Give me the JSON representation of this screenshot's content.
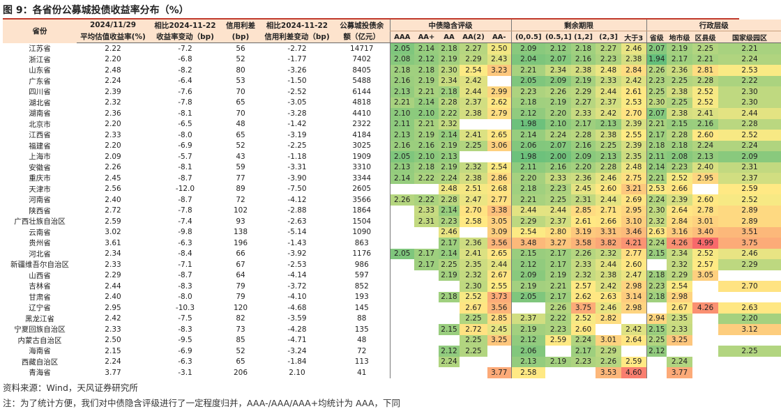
{
  "title": "图 9：各省份公募城投债收益率分布（%）",
  "source": "资料来源：Wind，天风证券研究所",
  "note": "注：为了统计方便，我们对中债隐含评级进行了一定程度归并，AAA-/AAA/AAA+均统计为 AAA，下同",
  "header": {
    "province": "省份",
    "yield_date": "2024/11/29",
    "yield_label": "平均估值收益率(%)",
    "chg_date": "相比2024-11-22",
    "chg_label": "收益率变动（bp)",
    "spread_top": "信用利差",
    "spread_unit": "(bp)",
    "spread_chg_date": "相比2024-11-22",
    "spread_chg_label": "信用利差变动（bp)",
    "balance_top": "公募城投债余",
    "balance_label": "额（亿元）",
    "group_rating": "中债隐含评级",
    "group_term": "剩余期限",
    "group_admin": "行政层级",
    "ratings": [
      "AAA",
      "AA+",
      "AA",
      "AA(2)",
      "AA-"
    ],
    "terms": [
      "(0,0.5]",
      "(0.5,1]",
      "(1,2]",
      "(2,3]",
      "大于3"
    ],
    "admin": [
      "省级",
      "地市级",
      "区县级",
      "国家级园区"
    ]
  },
  "chart_data": {
    "type": "table",
    "title": "图 9：各省份公募城投债收益率分布（%）",
    "colormap": {
      "low": "#63be7b",
      "mid": "#ffeb84",
      "high": "#f8696b",
      "low_value": 1.94,
      "mid_value": 2.55,
      "high_value": 4.99
    },
    "rows": [
      {
        "province": "江苏省",
        "yield": "2.22",
        "chg": "-7.2",
        "spread": "56",
        "spread_chg": "-2.72",
        "balance": "14717",
        "rating": [
          "2.05",
          "2.14",
          "2.18",
          "2.27",
          "2.50"
        ],
        "term": [
          "2.09",
          "2.12",
          "2.18",
          "2.27",
          "2.46"
        ],
        "admin": [
          "2.07",
          "2.19",
          "2.25",
          "2.21"
        ]
      },
      {
        "province": "浙江省",
        "yield": "2.20",
        "chg": "-6.8",
        "spread": "52",
        "spread_chg": "-1.77",
        "balance": "7402",
        "rating": [
          "2.08",
          "2.12",
          "2.19",
          "2.29",
          "2.43"
        ],
        "term": [
          "2.04",
          "2.07",
          "2.16",
          "2.23",
          "2.38"
        ],
        "admin": [
          "1.94",
          "2.17",
          "2.21",
          "2.24"
        ]
      },
      {
        "province": "山东省",
        "yield": "2.48",
        "chg": "-8.2",
        "spread": "80",
        "spread_chg": "-3.26",
        "balance": "8405",
        "rating": [
          "2.18",
          "2.18",
          "2.30",
          "2.54",
          "3.23"
        ],
        "term": [
          "2.21",
          "2.34",
          "2.38",
          "2.48",
          "2.84"
        ],
        "admin": [
          "2.26",
          "2.36",
          "2.81",
          "2.53"
        ]
      },
      {
        "province": "广东省",
        "yield": "2.24",
        "chg": "-6.4",
        "spread": "53",
        "spread_chg": "-1.50",
        "balance": "5488",
        "rating": [
          "2.16",
          "2.19",
          "2.34",
          "2.42",
          ""
        ],
        "term": [
          "2.05",
          "2.09",
          "2.19",
          "2.33",
          "2.42"
        ],
        "admin": [
          "2.23",
          "2.25",
          "2.28",
          "2.22"
        ]
      },
      {
        "province": "四川省",
        "yield": "2.39",
        "chg": "-7.6",
        "spread": "70",
        "spread_chg": "-2.52",
        "balance": "6144",
        "rating": [
          "2.13",
          "2.21",
          "2.18",
          "2.44",
          "2.99"
        ],
        "term": [
          "2.23",
          "2.26",
          "2.29",
          "2.44",
          "2.61"
        ],
        "admin": [
          "2.25",
          "2.38",
          "2.52",
          "2.30"
        ]
      },
      {
        "province": "湖北省",
        "yield": "2.32",
        "chg": "-7.8",
        "spread": "65",
        "spread_chg": "-3.05",
        "balance": "4818",
        "rating": [
          "2.21",
          "2.14",
          "2.28",
          "2.37",
          "2.62"
        ],
        "term": [
          "2.18",
          "2.19",
          "2.27",
          "2.37",
          "2.53"
        ],
        "admin": [
          "2.30",
          "2.25",
          "2.52",
          "2.30"
        ]
      },
      {
        "province": "湖南省",
        "yield": "2.36",
        "chg": "-8.1",
        "spread": "70",
        "spread_chg": "-3.28",
        "balance": "4410",
        "rating": [
          "2.10",
          "2.10",
          "2.22",
          "2.38",
          "2.79"
        ],
        "term": [
          "2.12",
          "2.20",
          "2.33",
          "2.42",
          "2.70"
        ],
        "admin": [
          "2.07",
          "2.38",
          "2.41",
          "2.44"
        ]
      },
      {
        "province": "北京市",
        "yield": "2.20",
        "chg": "-6.5",
        "spread": "48",
        "spread_chg": "-1.42",
        "balance": "2322",
        "rating": [
          "2.11",
          "2.21",
          "2.32",
          "",
          ""
        ],
        "term": [
          "1.98",
          "2.10",
          "2.17",
          "2.13",
          "2.39"
        ],
        "admin": [
          "2.21",
          "2.15",
          "2.16",
          "2.28"
        ]
      },
      {
        "province": "江西省",
        "yield": "2.33",
        "chg": "-8.0",
        "spread": "65",
        "spread_chg": "-3.19",
        "balance": "4184",
        "rating": [
          "2.13",
          "2.19",
          "2.14",
          "2.41",
          "2.65"
        ],
        "term": [
          "2.14",
          "2.24",
          "2.28",
          "2.38",
          "2.55"
        ],
        "admin": [
          "2.17",
          "2.28",
          "2.60",
          "2.52"
        ]
      },
      {
        "province": "福建省",
        "yield": "2.20",
        "chg": "-6.9",
        "spread": "52",
        "spread_chg": "-2.25",
        "balance": "3025",
        "rating": [
          "2.16",
          "2.16",
          "2.19",
          "2.25",
          "3.06"
        ],
        "term": [
          "2.06",
          "2.07",
          "2.16",
          "2.25",
          "2.39"
        ],
        "admin": [
          "2.18",
          "2.18",
          "2.24",
          "2.24"
        ]
      },
      {
        "province": "上海市",
        "yield": "2.09",
        "chg": "-5.7",
        "spread": "43",
        "spread_chg": "-1.18",
        "balance": "1909",
        "rating": [
          "2.05",
          "2.10",
          "2.13",
          "",
          ""
        ],
        "term": [
          "1.98",
          "2.00",
          "2.09",
          "2.13",
          "2.35"
        ],
        "admin": [
          "2.11",
          "2.08",
          "2.13",
          "2.09"
        ]
      },
      {
        "province": "安徽省",
        "yield": "2.26",
        "chg": "-8.1",
        "spread": "59",
        "spread_chg": "-3.31",
        "balance": "3310",
        "rating": [
          "2.13",
          "2.18",
          "2.19",
          "2.32",
          "2.54"
        ],
        "term": [
          "2.11",
          "2.16",
          "2.20",
          "2.28",
          "2.48"
        ],
        "admin": [
          "2.14",
          "2.23",
          "2.40",
          "2.31"
        ]
      },
      {
        "province": "重庆市",
        "yield": "2.45",
        "chg": "-8.7",
        "spread": "77",
        "spread_chg": "-3.90",
        "balance": "3344",
        "rating": [
          "2.14",
          "2.22",
          "2.24",
          "2.38",
          "2.86"
        ],
        "term": [
          "2.20",
          "2.33",
          "2.36",
          "2.46",
          "2.75"
        ],
        "admin": [
          "2.21",
          "2.52",
          "2.95",
          "2.37"
        ]
      },
      {
        "province": "天津市",
        "yield": "2.56",
        "chg": "-12.0",
        "spread": "89",
        "spread_chg": "-7.50",
        "balance": "2605",
        "rating": [
          "",
          "",
          "2.48",
          "2.51",
          "2.68"
        ],
        "term": [
          "2.18",
          "2.23",
          "2.45",
          "2.60",
          "3.21"
        ],
        "admin": [
          "2.53",
          "2.66",
          "",
          "2.59"
        ]
      },
      {
        "province": "河南省",
        "yield": "2.40",
        "chg": "-8.7",
        "spread": "72",
        "spread_chg": "-4.12",
        "balance": "3566",
        "rating": [
          "2.26",
          "2.22",
          "2.28",
          "2.47",
          "2.77"
        ],
        "term": [
          "2.21",
          "2.25",
          "2.31",
          "2.44",
          "2.69"
        ],
        "admin": [
          "2.24",
          "2.39",
          "2.60",
          "2.52"
        ]
      },
      {
        "province": "陕西省",
        "yield": "2.72",
        "chg": "-7.8",
        "spread": "102",
        "spread_chg": "-2.88",
        "balance": "1864",
        "rating": [
          "",
          "2.33",
          "2.14",
          "2.70",
          "3.38"
        ],
        "term": [
          "2.44",
          "2.44",
          "2.85",
          "2.71",
          "2.95"
        ],
        "admin": [
          "2.30",
          "2.64",
          "2.78",
          "2.89"
        ]
      },
      {
        "province": "广西壮族自治区",
        "yield": "2.59",
        "chg": "-7.4",
        "spread": "93",
        "spread_chg": "-2.63",
        "balance": "1504",
        "rating": [
          "",
          "2.31",
          "2.23",
          "2.58",
          "3.05"
        ],
        "term": [
          "2.29",
          "2.37",
          "2.61",
          "2.66",
          "3.10"
        ],
        "admin": [
          "2.32",
          "2.84",
          "3.01",
          "2.89"
        ]
      },
      {
        "province": "云南省",
        "yield": "3.02",
        "chg": "-9.8",
        "spread": "138",
        "spread_chg": "-5.14",
        "balance": "1090",
        "rating": [
          "",
          "",
          "2.46",
          "",
          "3.09"
        ],
        "term": [
          "2.54",
          "2.80",
          "3.19",
          "3.31",
          "3.46"
        ],
        "admin": [
          "2.63",
          "3.16",
          "3.40",
          "3.51"
        ]
      },
      {
        "province": "贵州省",
        "yield": "3.61",
        "chg": "-6.3",
        "spread": "196",
        "spread_chg": "-1.43",
        "balance": "863",
        "rating": [
          "",
          "",
          "2.17",
          "2.36",
          "3.56"
        ],
        "term": [
          "3.48",
          "3.27",
          "3.58",
          "3.82",
          "4.21"
        ],
        "admin": [
          "2.24",
          "4.26",
          "4.99",
          "3.75"
        ]
      },
      {
        "province": "河北省",
        "yield": "2.34",
        "chg": "-8.4",
        "spread": "66",
        "spread_chg": "-3.92",
        "balance": "1176",
        "rating": [
          "2.05",
          "2.17",
          "2.14",
          "2.41",
          "2.65"
        ],
        "term": [
          "2.15",
          "2.17",
          "2.26",
          "2.32",
          "2.77"
        ],
        "admin": [
          "2.15",
          "2.34",
          "2.52",
          "2.46"
        ]
      },
      {
        "province": "新疆维吾尔自治区",
        "yield": "2.33",
        "chg": "-7.1",
        "spread": "67",
        "spread_chg": "-2.53",
        "balance": "986",
        "rating": [
          "",
          "2.17",
          "2.25",
          "2.35",
          "2.44"
        ],
        "term": [
          "2.12",
          "2.17",
          "2.33",
          "2.44",
          "2.60"
        ],
        "admin": [
          "",
          "2.32",
          "2.57",
          "2.29"
        ]
      },
      {
        "province": "山西省",
        "yield": "2.29",
        "chg": "-8.7",
        "spread": "64",
        "spread_chg": "-4.14",
        "balance": "597",
        "rating": [
          "",
          "",
          "2.19",
          "2.32",
          "2.67"
        ],
        "term": [
          "2.09",
          "2.19",
          "2.32",
          "2.38",
          "2.47"
        ],
        "admin": [
          "2.18",
          "2.29",
          "3.05",
          ""
        ]
      },
      {
        "province": "吉林省",
        "yield": "2.44",
        "chg": "-8.3",
        "spread": "79",
        "spread_chg": "-3.72",
        "balance": "852",
        "rating": [
          "",
          "",
          "",
          "2.30",
          "2.55"
        ],
        "term": [
          "2.19",
          "2.21",
          "2.57",
          "2.42",
          "2.98"
        ],
        "admin": [
          "2.23",
          "2.54",
          "",
          "2.70"
        ]
      },
      {
        "province": "甘肃省",
        "yield": "2.40",
        "chg": "-8.0",
        "spread": "79",
        "spread_chg": "-4.10",
        "balance": "193",
        "rating": [
          "",
          "",
          "2.18",
          "2.52",
          "3.73"
        ],
        "term": [
          "2.05",
          "2.17",
          "2.62",
          "2.63",
          "3.14"
        ],
        "admin": [
          "2.18",
          "2.98",
          "",
          ""
        ]
      },
      {
        "province": "辽宁省",
        "yield": "2.95",
        "chg": "-10.3",
        "spread": "120",
        "spread_chg": "-4.68",
        "balance": "145",
        "rating": [
          "",
          "",
          "",
          "2.67",
          "3.56"
        ],
        "term": [
          "",
          "2.26",
          "3.75",
          "2.46",
          "2.98"
        ],
        "admin": [
          "",
          "2.67",
          "4.26",
          "2.63"
        ]
      },
      {
        "province": "黑龙江省",
        "yield": "2.42",
        "chg": "-7.5",
        "spread": "82",
        "spread_chg": "-3.59",
        "balance": "88",
        "rating": [
          "",
          "",
          "",
          "2.25",
          "2.85"
        ],
        "term": [
          "2.37",
          "2.22",
          "2.52",
          "2.82",
          ""
        ],
        "admin": [
          "2.94",
          "2.35",
          "",
          "2.20"
        ]
      },
      {
        "province": "宁夏回族自治区",
        "yield": "2.33",
        "chg": "-8.3",
        "spread": "73",
        "spread_chg": "-4.28",
        "balance": "135",
        "rating": [
          "",
          "",
          "2.15",
          "2.72",
          "2.45"
        ],
        "term": [
          "2.19",
          "2.23",
          "2.60",
          "",
          "2.42"
        ],
        "admin": [
          "2.15",
          "2.33",
          "",
          "3.12"
        ]
      },
      {
        "province": "内蒙古自治区",
        "yield": "2.50",
        "chg": "-9.5",
        "spread": "85",
        "spread_chg": "-4.71",
        "balance": "48",
        "rating": [
          "",
          "",
          "",
          "2.25",
          "3.25"
        ],
        "term": [
          "2.12",
          "2.59",
          "2.24",
          "3.01",
          "2.64"
        ],
        "admin": [
          "2.25",
          "3.25",
          "",
          ""
        ]
      },
      {
        "province": "海南省",
        "yield": "2.15",
        "chg": "-6.9",
        "spread": "52",
        "spread_chg": "-3.24",
        "balance": "72",
        "rating": [
          "",
          "",
          "2.12",
          "2.25",
          ""
        ],
        "term": [
          "2.06",
          "",
          "2.17",
          "2.29",
          ""
        ],
        "admin": [
          "2.12",
          "",
          "",
          "2.25"
        ]
      },
      {
        "province": "西藏自治区",
        "yield": "2.24",
        "chg": "-6.3",
        "spread": "65",
        "spread_chg": "-1.84",
        "balance": "113",
        "rating": [
          "",
          "",
          "2.24",
          "",
          ""
        ],
        "term": [
          "2.13",
          "2.19",
          "2.23",
          "2.26",
          "2.59"
        ],
        "admin": [
          "",
          "2.24",
          "",
          ""
        ]
      },
      {
        "province": "青海省",
        "yield": "3.77",
        "chg": "-3.1",
        "spread": "206",
        "spread_chg": "2.10",
        "balance": "41",
        "rating": [
          "",
          "",
          "",
          "",
          "3.77"
        ],
        "term": [
          "2.58",
          "",
          "",
          "3.53",
          "4.60"
        ],
        "admin": [
          "",
          "3.77",
          "",
          ""
        ]
      }
    ]
  }
}
